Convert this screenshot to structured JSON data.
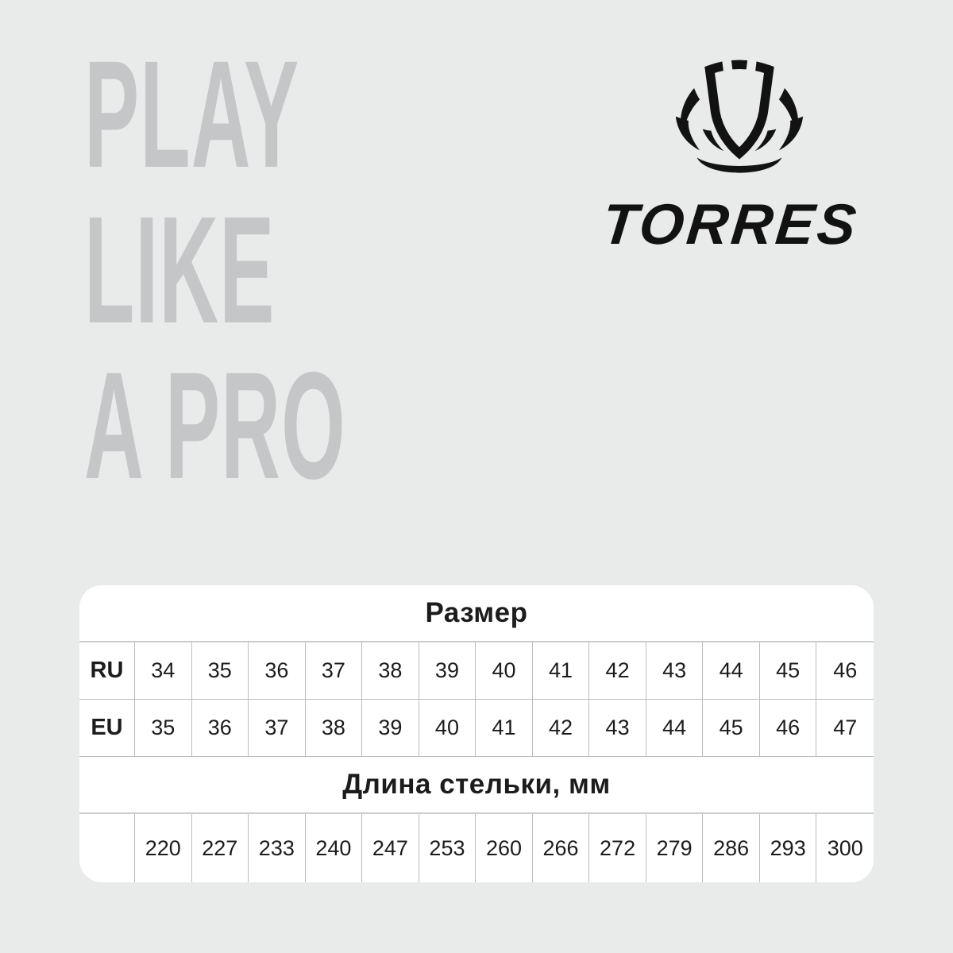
{
  "watermark": {
    "line1": "PLAY",
    "line2": "LIKE",
    "line3": "A PRO"
  },
  "brand": {
    "wordmark": "TORRES",
    "emblem_icon": "torres-shield-emblem"
  },
  "size_chart": {
    "size_header": "Размер",
    "insole_header": "Длина стельки, мм",
    "ru": {
      "label": "RU",
      "values": [
        "34",
        "35",
        "36",
        "37",
        "38",
        "39",
        "40",
        "41",
        "42",
        "43",
        "44",
        "45",
        "46"
      ]
    },
    "eu": {
      "label": "EU",
      "values": [
        "35",
        "36",
        "37",
        "38",
        "39",
        "40",
        "41",
        "42",
        "43",
        "44",
        "45",
        "46",
        "47"
      ]
    },
    "insole": {
      "label": "",
      "values": [
        "220",
        "227",
        "233",
        "240",
        "247",
        "253",
        "260",
        "266",
        "272",
        "279",
        "286",
        "293",
        "300"
      ]
    }
  },
  "chart_data": {
    "type": "table",
    "title": "Размер",
    "columns": [
      "RU",
      "EU",
      "Длина стельки, мм"
    ],
    "rows": [
      [
        34,
        35,
        220
      ],
      [
        35,
        36,
        227
      ],
      [
        36,
        37,
        233
      ],
      [
        37,
        38,
        240
      ],
      [
        38,
        39,
        247
      ],
      [
        39,
        40,
        253
      ],
      [
        40,
        41,
        260
      ],
      [
        41,
        42,
        266
      ],
      [
        42,
        43,
        272
      ],
      [
        43,
        44,
        279
      ],
      [
        44,
        45,
        286
      ],
      [
        45,
        46,
        293
      ],
      [
        46,
        47,
        300
      ]
    ]
  },
  "colors": {
    "background": "#e9eaea",
    "watermark_text": "#c5c6c8",
    "card_background": "#ffffff",
    "grid_line": "#bcbcbc",
    "text": "#1c1c1c",
    "brand_black": "#121212"
  }
}
